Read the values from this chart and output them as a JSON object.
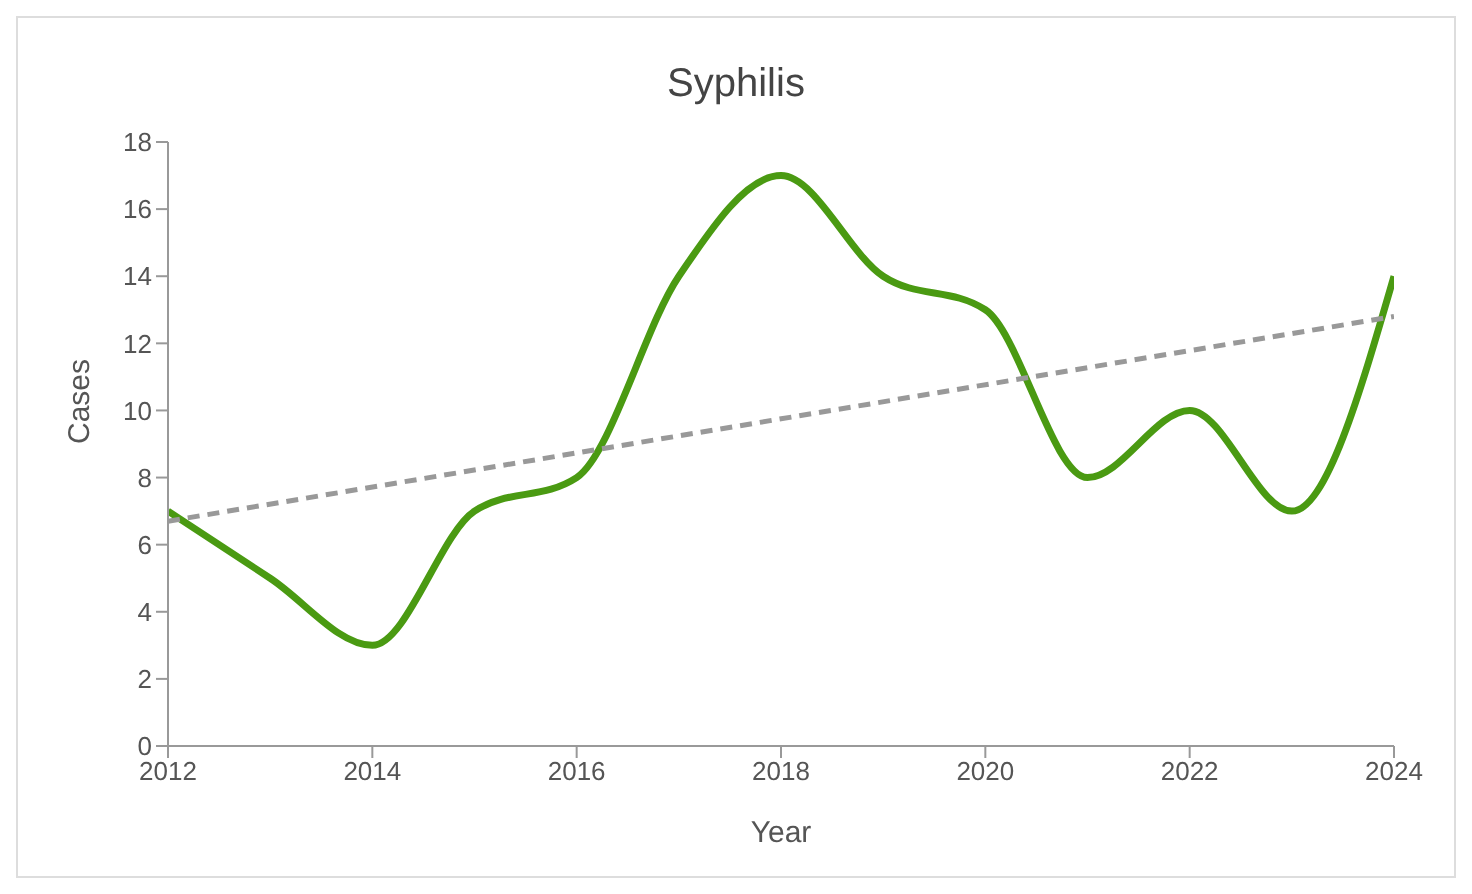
{
  "chart_data": {
    "type": "line",
    "title": "Syphilis",
    "xlabel": "Year",
    "ylabel": "Cases",
    "x": [
      2012,
      2013,
      2014,
      2015,
      2016,
      2017,
      2018,
      2019,
      2020,
      2021,
      2022,
      2023,
      2024
    ],
    "series": [
      {
        "color": "#4a9a12",
        "values": [
          7,
          5,
          3,
          7,
          8,
          14,
          17,
          14,
          13,
          8,
          10,
          7,
          14
        ],
        "line_style": "solid"
      },
      {
        "color": "#999999",
        "x": [
          2012,
          2024
        ],
        "values": [
          6.7,
          12.8
        ],
        "line_style": "dashed"
      }
    ],
    "xlim": [
      2012,
      2024
    ],
    "xticks": [
      2012,
      2014,
      2016,
      2018,
      2020,
      2022,
      2024
    ],
    "ylim": [
      0,
      18
    ],
    "yticks": [
      0,
      2,
      4,
      6,
      8,
      10,
      12,
      14,
      16,
      18
    ],
    "grid": false,
    "marker": "none"
  }
}
